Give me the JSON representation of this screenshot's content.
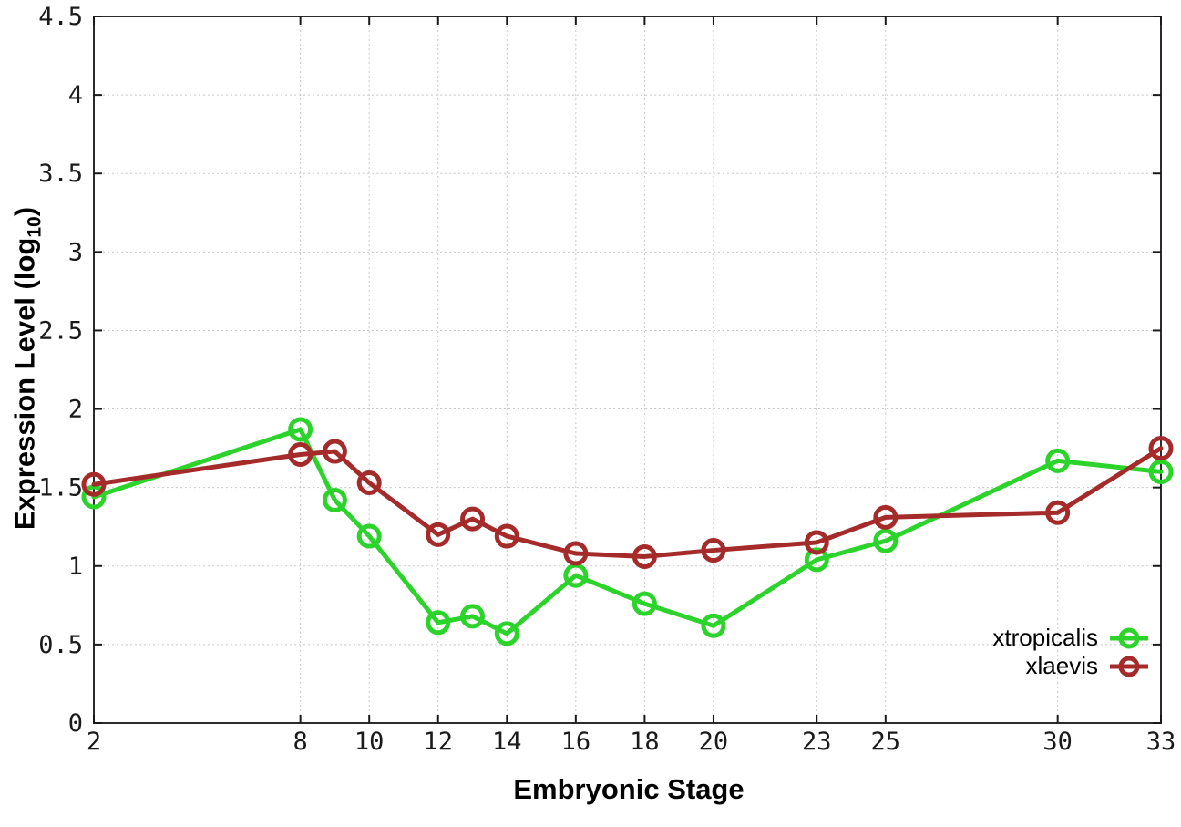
{
  "figure": {
    "background": "#ffffff",
    "plot_border_color": "#2b2b2b",
    "grid_color": "#c8c8c8",
    "tick_color": "#1a1a1a",
    "tick_label_color": "#1a1a1a",
    "axis_title_color": "#000000"
  },
  "axes": {
    "y_title_main": "Expression Level (log",
    "y_title_sub": "10",
    "y_title_close": ")",
    "x_title": "Embryonic Stage"
  },
  "chart_data": {
    "type": "line",
    "title": "",
    "xlabel": "Embryonic Stage",
    "ylabel": "Expression Level (log10)",
    "x": [
      2,
      8,
      9,
      10,
      12,
      13,
      14,
      16,
      18,
      20,
      23,
      25,
      30,
      33
    ],
    "series": [
      {
        "name": "xtropicalis",
        "color": "#2bd32b",
        "values": [
          1.44,
          1.87,
          1.42,
          1.19,
          0.64,
          0.68,
          0.57,
          0.94,
          0.76,
          0.62,
          1.04,
          1.16,
          1.67,
          1.6
        ]
      },
      {
        "name": "xlaevis",
        "color": "#a52a2a",
        "values": [
          1.52,
          1.71,
          1.73,
          1.53,
          1.2,
          1.3,
          1.19,
          1.08,
          1.06,
          1.1,
          1.15,
          1.31,
          1.34,
          1.75
        ]
      }
    ],
    "xlim": [
      2,
      33
    ],
    "ylim": [
      0,
      4.5
    ],
    "x_ticks": [
      2,
      8,
      10,
      12,
      14,
      16,
      18,
      20,
      23,
      25,
      30,
      33
    ],
    "x_tick_labels": [
      "2",
      "8",
      "10",
      "12",
      "14",
      "16",
      "18",
      "20",
      "23",
      "25",
      "30",
      "33"
    ],
    "y_ticks": [
      0,
      0.5,
      1,
      1.5,
      2,
      2.5,
      3,
      3.5,
      4,
      4.5
    ],
    "y_tick_labels": [
      "0",
      "0.5",
      "1",
      "1.5",
      "2",
      "2.5",
      "3",
      "3.5",
      "4",
      "4.5"
    ],
    "grid": true,
    "legend_position": "bottom-right",
    "marker": "open-circle"
  }
}
